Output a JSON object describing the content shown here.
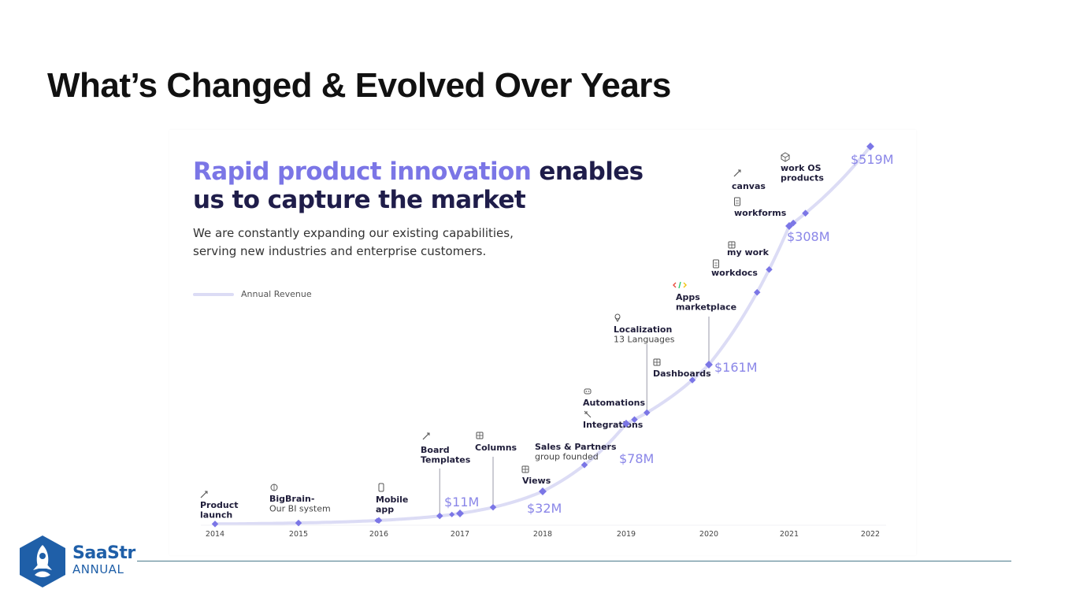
{
  "slide": {
    "title": "What’s Changed & Evolved Over Years"
  },
  "panel": {
    "headline_accent": "Rapid product innovation",
    "headline_rest_1": " enables",
    "headline_line_2": "us to capture the market",
    "subtext_line_1": "We are constantly expanding our existing capabilities,",
    "subtext_line_2": "serving new industries and enterprise customers.",
    "legend_label": "Annual Revenue"
  },
  "logo": {
    "name": "SaaStr",
    "sub": "ANNUAL"
  },
  "colors": {
    "accent": "#7b76e6",
    "curve": "#dcdcf5",
    "headline": "#1f1d4a",
    "revenue_label": "#8a86e8",
    "brand_blue": "#1f5fa8"
  },
  "chart_data": {
    "type": "line",
    "xlabel": "",
    "ylabel": "",
    "x_ticks": [
      "2014",
      "2015",
      "2016",
      "2017",
      "2018",
      "2019",
      "2020",
      "2021",
      "2022"
    ],
    "series": [
      {
        "name": "Annual Revenue",
        "revenue_points": [
          {
            "year": 2017,
            "value": 11,
            "label": "$11M"
          },
          {
            "year": 2018,
            "value": 32,
            "label": "$32M"
          },
          {
            "year": 2019,
            "value": 78,
            "label": "$78M"
          },
          {
            "year": 2020,
            "value": 161,
            "label": "$161M"
          },
          {
            "year": 2021,
            "value": 308,
            "label": "$308M"
          },
          {
            "year": 2022,
            "value": 519,
            "label": "$519M"
          }
        ]
      }
    ],
    "milestones": [
      {
        "year": 2014.0,
        "title": "Product launch",
        "icon": "rocket-icon"
      },
      {
        "year": 2015.0,
        "title": "BigBrain- Our BI system",
        "icon": "brain-icon"
      },
      {
        "year": 2016.0,
        "title": "Mobile app",
        "icon": "mobile-icon"
      },
      {
        "year": 2016.75,
        "title": "Board Templates",
        "icon": "wand-icon"
      },
      {
        "year": 2017.4,
        "title": "Columns",
        "icon": "columns-icon"
      },
      {
        "year": 2018.0,
        "title": "Views",
        "icon": "views-icon"
      },
      {
        "year": 2018.5,
        "title": "Sales & Partners group founded",
        "icon": ""
      },
      {
        "year": 2019.0,
        "title": "Integrations",
        "icon": "plug-icon"
      },
      {
        "year": 2019.1,
        "title": "Automations",
        "icon": "robot-icon"
      },
      {
        "year": 2019.25,
        "title": "Localization 13 Languages",
        "icon": "pin-icon"
      },
      {
        "year": 2019.8,
        "title": "Dashboards",
        "icon": "dashboard-icon"
      },
      {
        "year": 2020.0,
        "title": "Apps marketplace",
        "icon": "code-icon"
      },
      {
        "year": 2020.6,
        "title": "workdocs",
        "icon": "doc-icon"
      },
      {
        "year": 2020.75,
        "title": "my work",
        "icon": "mywork-icon"
      },
      {
        "year": 2021.05,
        "title": "workforms",
        "icon": "form-icon"
      },
      {
        "year": 2021.2,
        "title": "canvas",
        "icon": "pencil-icon"
      },
      {
        "year": 2021.2,
        "title": "work OS products",
        "icon": "cube-icon"
      }
    ],
    "milestone_labels": [
      [
        "Product",
        "launch"
      ],
      [
        "BigBrain-",
        "Our BI system"
      ],
      [
        "Mobile",
        "app"
      ],
      [
        "Board",
        "Templates"
      ],
      [
        "Columns"
      ],
      [
        "Views"
      ],
      [
        "Sales & Partners",
        "group founded"
      ],
      [
        "Integrations"
      ],
      [
        "Automations"
      ],
      [
        "Localization",
        "13 Languages"
      ],
      [
        "Dashboards"
      ],
      [
        "Apps",
        "marketplace"
      ],
      [
        "workdocs"
      ],
      [
        "my work"
      ],
      [
        "workforms"
      ],
      [
        "canvas"
      ],
      [
        "work OS",
        "products"
      ]
    ],
    "legend": "top-left",
    "grid": false
  }
}
